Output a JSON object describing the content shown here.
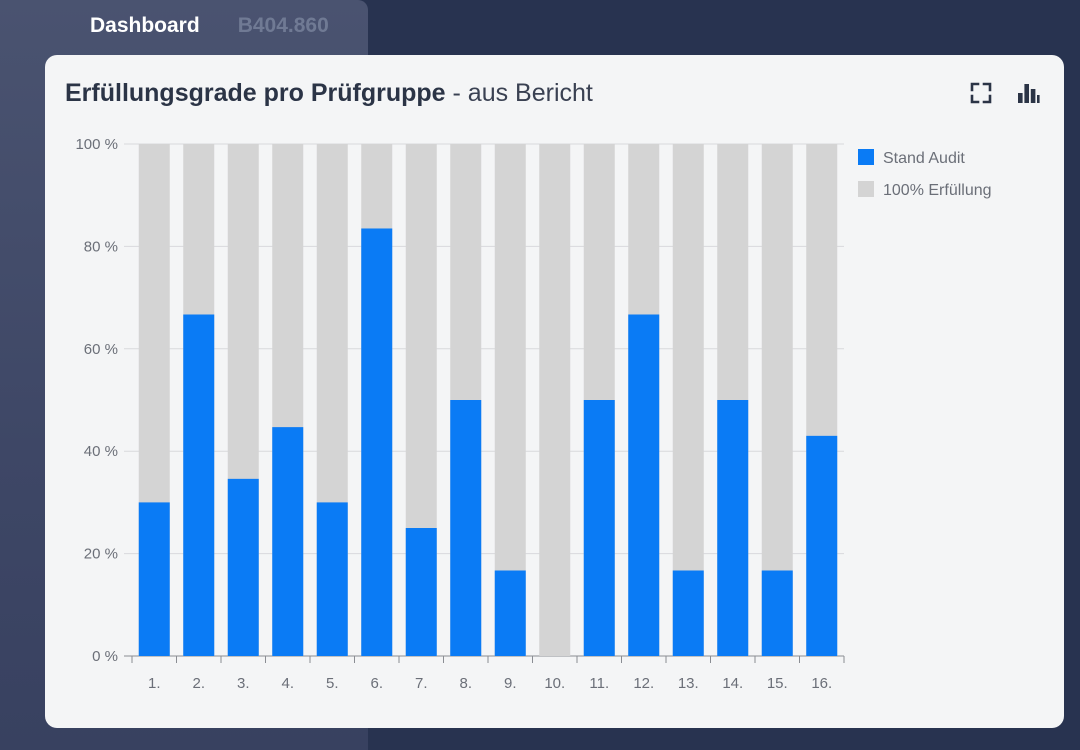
{
  "nav": {
    "tabs": [
      {
        "label": "Dashboard",
        "active": true
      },
      {
        "label": "B404.860",
        "active": false
      }
    ]
  },
  "card": {
    "title": "Erfüllungsgrade pro Prüfgruppe",
    "subtitle": "- aus Bericht",
    "icons": [
      "fullscreen-icon",
      "bar-chart-icon"
    ]
  },
  "colors": {
    "page_bg": "#283350",
    "card_bg": "#f4f5f6",
    "stand_audit": "#0a7bf5",
    "full": "#d4d4d4"
  },
  "chart_data": {
    "type": "bar",
    "stacked_overlay": true,
    "categories": [
      "1.",
      "2.",
      "3.",
      "4.",
      "5.",
      "6.",
      "7.",
      "8.",
      "9.",
      "10.",
      "11.",
      "12.",
      "13.",
      "14.",
      "15.",
      "16."
    ],
    "series": [
      {
        "name": "Stand Audit",
        "color": "#0a7bf5",
        "values": [
          30,
          66.7,
          34.6,
          44.7,
          30,
          83.5,
          25,
          50,
          16.7,
          0,
          50,
          66.7,
          16.7,
          50,
          16.7,
          43
        ]
      },
      {
        "name": "100% Erfüllung",
        "color": "#d4d4d4",
        "values": [
          100,
          100,
          100,
          100,
          100,
          100,
          100,
          100,
          100,
          100,
          100,
          100,
          100,
          100,
          100,
          100
        ]
      }
    ],
    "y_ticks": [
      "0 %",
      "20 %",
      "40 %",
      "60 %",
      "80 %",
      "100 %"
    ],
    "ylim": [
      0,
      100
    ],
    "grid": true,
    "legend_position": "right"
  }
}
